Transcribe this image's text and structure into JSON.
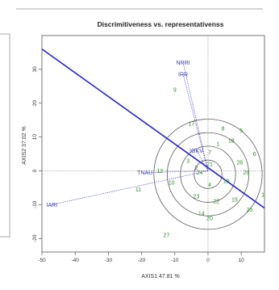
{
  "chart_data": {
    "type": "scatter",
    "title": "Discrimitiveness vs. representativenss",
    "xlabel": "AXIS1 47.81 %",
    "ylabel": "AXIS2 37.02 %",
    "xlim": [
      -50,
      17
    ],
    "ylim": [
      -24,
      40
    ],
    "x_ticks": [
      -50,
      -40,
      -30,
      -20,
      -10,
      0,
      10
    ],
    "y_ticks": [
      -20,
      -10,
      0,
      10,
      20,
      30
    ],
    "x_tick_labels": [
      "-50",
      "-40",
      "-30",
      "-20",
      "-10",
      "0",
      "10"
    ],
    "y_tick_labels": [
      "-20",
      "-10",
      "0",
      "10",
      "20",
      "30"
    ],
    "average_environment_axis": {
      "from": [
        -50,
        36
      ],
      "to": [
        17,
        -11
      ],
      "color": "#2323c8"
    },
    "concentric_circles": {
      "center": [
        0,
        -1
      ],
      "radii": [
        4.2,
        8.3,
        12.3,
        16.3
      ]
    },
    "environment_vectors_origin": [
      0,
      0
    ],
    "environments": [
      {
        "label": "NRRI",
        "x": -7.5,
        "y": 32
      },
      {
        "label": "IRR",
        "x": -7.5,
        "y": 28.5
      },
      {
        "label": "IGKV",
        "x": -3.5,
        "y": 6
      },
      {
        "label": "TNAU",
        "x": -19,
        "y": -0.5
      },
      {
        "label": "IARI",
        "x": -47,
        "y": -10
      }
    ],
    "genotypes": [
      {
        "label": "1",
        "x": 3,
        "y": 8
      },
      {
        "label": "2",
        "x": -3.5,
        "y": 1
      },
      {
        "label": "3",
        "x": -6,
        "y": 3
      },
      {
        "label": "4",
        "x": 0.5,
        "y": -4
      },
      {
        "label": "5",
        "x": 10,
        "y": 12
      },
      {
        "label": "6",
        "x": 14,
        "y": 5
      },
      {
        "label": "7",
        "x": 0.5,
        "y": 5.5
      },
      {
        "label": "8",
        "x": 4.5,
        "y": 12.5
      },
      {
        "label": "9",
        "x": -10,
        "y": 24
      },
      {
        "label": "10",
        "x": -11,
        "y": -3.5
      },
      {
        "label": "11",
        "x": -21,
        "y": -5.5
      },
      {
        "label": "12",
        "x": -14.5,
        "y": 0
      },
      {
        "label": "14",
        "x": -2,
        "y": -12.5
      },
      {
        "label": "15",
        "x": 8,
        "y": -8.5
      },
      {
        "label": "16",
        "x": 17,
        "y": -7
      },
      {
        "label": "17",
        "x": -5,
        "y": 14
      },
      {
        "label": "18",
        "x": 7,
        "y": 9
      },
      {
        "label": "19",
        "x": 5.5,
        "y": -3
      },
      {
        "label": "20",
        "x": 0.5,
        "y": -14
      },
      {
        "label": "21",
        "x": 0.5,
        "y": 2
      },
      {
        "label": "22",
        "x": 2.5,
        "y": -9
      },
      {
        "label": "23",
        "x": -3.5,
        "y": -7.5
      },
      {
        "label": "24",
        "x": -2.5,
        "y": -0.5
      },
      {
        "label": "25",
        "x": 12.5,
        "y": -11.5
      },
      {
        "label": "26",
        "x": 11.5,
        "y": -0.5
      },
      {
        "label": "27",
        "x": -12.5,
        "y": -19
      },
      {
        "label": "28",
        "x": 9.5,
        "y": 2.5
      }
    ],
    "colors": {
      "genotype": "#2e8b2e",
      "environment": "#3a3ab8",
      "axis": "#2323c8",
      "frame": "#555555"
    }
  }
}
